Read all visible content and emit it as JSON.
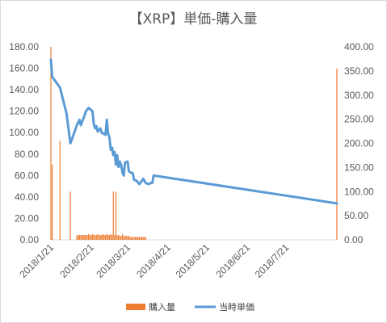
{
  "chart_data": {
    "type": "bar+line",
    "title": "【XRP】単価-購入量",
    "left_axis": {
      "ticks": [
        "0.00",
        "20.00",
        "40.00",
        "60.00",
        "80.00",
        "100.00",
        "120.00",
        "140.00",
        "160.00",
        "180.00"
      ],
      "ylim": [
        0,
        180
      ]
    },
    "right_axis": {
      "ticks": [
        "0.00",
        "50.00",
        "100.00",
        "150.00",
        "200.00",
        "250.00",
        "300.00",
        "350.00",
        "400.00"
      ],
      "ylim": [
        0,
        400
      ]
    },
    "x_ticks": [
      "2018/1/21",
      "2018/2/21",
      "2018/3/21",
      "2018/4/21",
      "2018/5/21",
      "2018/6/21",
      "2018/7/21"
    ],
    "x_range": [
      "2018-01-21",
      "2018-08-29"
    ],
    "series": [
      {
        "name": "購入量",
        "kind": "bar",
        "axis": "right",
        "color": "#ED7D31",
        "points": [
          [
            "2018-01-21",
            400
          ],
          [
            "2018-01-22",
            156
          ],
          [
            "2018-01-28",
            205
          ],
          [
            "2018-02-05",
            100
          ],
          [
            "2018-02-10",
            10
          ],
          [
            "2018-02-11",
            10
          ],
          [
            "2018-02-12",
            10
          ],
          [
            "2018-02-13",
            10
          ],
          [
            "2018-02-14",
            10
          ],
          [
            "2018-02-15",
            10
          ],
          [
            "2018-02-16",
            10
          ],
          [
            "2018-02-17",
            10
          ],
          [
            "2018-02-18",
            10
          ],
          [
            "2018-02-19",
            12
          ],
          [
            "2018-02-20",
            10
          ],
          [
            "2018-02-21",
            10
          ],
          [
            "2018-02-22",
            12
          ],
          [
            "2018-02-23",
            10
          ],
          [
            "2018-02-24",
            10
          ],
          [
            "2018-02-25",
            10
          ],
          [
            "2018-02-26",
            12
          ],
          [
            "2018-02-27",
            10
          ],
          [
            "2018-02-28",
            10
          ],
          [
            "2018-03-01",
            10
          ],
          [
            "2018-03-02",
            12
          ],
          [
            "2018-03-03",
            10
          ],
          [
            "2018-03-04",
            10
          ],
          [
            "2018-03-05",
            12
          ],
          [
            "2018-03-06",
            10
          ],
          [
            "2018-03-07",
            10
          ],
          [
            "2018-03-08",
            12
          ],
          [
            "2018-03-09",
            10
          ],
          [
            "2018-03-10",
            100
          ],
          [
            "2018-03-11",
            10
          ],
          [
            "2018-03-12",
            100
          ],
          [
            "2018-03-13",
            10
          ],
          [
            "2018-03-14",
            10
          ],
          [
            "2018-03-15",
            8
          ],
          [
            "2018-03-16",
            8
          ],
          [
            "2018-03-17",
            12
          ],
          [
            "2018-03-18",
            8
          ],
          [
            "2018-03-19",
            8
          ],
          [
            "2018-03-20",
            8
          ],
          [
            "2018-03-21",
            8
          ],
          [
            "2018-03-22",
            8
          ],
          [
            "2018-03-23",
            6
          ],
          [
            "2018-03-24",
            6
          ],
          [
            "2018-03-25",
            6
          ],
          [
            "2018-03-26",
            6
          ],
          [
            "2018-03-27",
            6
          ],
          [
            "2018-03-28",
            6
          ],
          [
            "2018-03-29",
            6
          ],
          [
            "2018-03-30",
            6
          ],
          [
            "2018-03-31",
            6
          ],
          [
            "2018-04-01",
            6
          ],
          [
            "2018-04-02",
            6
          ],
          [
            "2018-04-03",
            6
          ],
          [
            "2018-04-04",
            6
          ],
          [
            "2018-08-29",
            355
          ]
        ]
      },
      {
        "name": "当時単価",
        "kind": "line",
        "axis": "left",
        "color": "#5B9BD5",
        "points": [
          [
            "2018-01-21",
            168
          ],
          [
            "2018-01-22",
            152
          ],
          [
            "2018-01-28",
            142
          ],
          [
            "2018-02-02",
            118
          ],
          [
            "2018-02-05",
            90
          ],
          [
            "2018-02-08",
            100
          ],
          [
            "2018-02-10",
            107
          ],
          [
            "2018-02-12",
            112
          ],
          [
            "2018-02-13",
            107
          ],
          [
            "2018-02-15",
            113
          ],
          [
            "2018-02-17",
            120
          ],
          [
            "2018-02-19",
            123
          ],
          [
            "2018-02-22",
            120
          ],
          [
            "2018-02-23",
            108
          ],
          [
            "2018-02-24",
            104
          ],
          [
            "2018-02-25",
            106
          ],
          [
            "2018-02-26",
            101
          ],
          [
            "2018-02-28",
            104
          ],
          [
            "2018-03-01",
            100
          ],
          [
            "2018-03-04",
            98
          ],
          [
            "2018-03-05",
            112
          ],
          [
            "2018-03-06",
            99
          ],
          [
            "2018-03-07",
            96
          ],
          [
            "2018-03-08",
            84
          ],
          [
            "2018-03-09",
            86
          ],
          [
            "2018-03-10",
            79
          ],
          [
            "2018-03-11",
            82
          ],
          [
            "2018-03-12",
            70
          ],
          [
            "2018-03-13",
            79
          ],
          [
            "2018-03-14",
            68
          ],
          [
            "2018-03-15",
            73
          ],
          [
            "2018-03-16",
            70
          ],
          [
            "2018-03-17",
            63
          ],
          [
            "2018-03-18",
            60
          ],
          [
            "2018-03-19",
            72
          ],
          [
            "2018-03-21",
            73
          ],
          [
            "2018-03-22",
            64
          ],
          [
            "2018-03-23",
            63
          ],
          [
            "2018-03-25",
            62
          ],
          [
            "2018-03-26",
            56
          ],
          [
            "2018-03-28",
            55
          ],
          [
            "2018-03-30",
            52
          ],
          [
            "2018-04-01",
            55
          ],
          [
            "2018-04-02",
            57
          ],
          [
            "2018-04-04",
            53
          ],
          [
            "2018-04-06",
            52
          ],
          [
            "2018-04-08",
            53
          ],
          [
            "2018-04-09",
            53
          ],
          [
            "2018-04-10",
            60
          ],
          [
            "2018-08-29",
            34
          ]
        ]
      }
    ],
    "legend": {
      "position": "bottom"
    },
    "grid": false
  }
}
